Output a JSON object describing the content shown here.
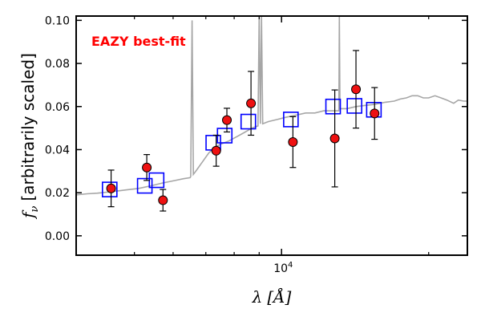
{
  "chart_data": {
    "type": "scatter",
    "annotation": "EAZY best-fit",
    "annotation_color": "#ff0000",
    "ylabel_parts": [
      "[arbitrarily scaled]"
    ],
    "ylabel_symbol": "f",
    "ylabel_subscript": "ν",
    "xlabel_symbol": "λ",
    "xlabel_unit": "[Å]",
    "x_scale": "log",
    "xlim": [
      3800,
      24000
    ],
    "ylim": [
      -0.009,
      0.102
    ],
    "y_ticks": [
      {
        "value": 0.0,
        "label": "0.00"
      },
      {
        "value": 0.02,
        "label": "0.02"
      },
      {
        "value": 0.04,
        "label": "0.04"
      },
      {
        "value": 0.06,
        "label": "0.06"
      },
      {
        "value": 0.08,
        "label": "0.08"
      },
      {
        "value": 0.1,
        "label": "0.10"
      }
    ],
    "x_major_ticks": [
      {
        "value": 10000,
        "label_base": "10",
        "label_exp": "4"
      }
    ],
    "x_minor_ticks": [
      5000,
      6000,
      7000,
      8000,
      9000,
      20000
    ],
    "sed_color": "#a6a6a6",
    "sed_curve": [
      [
        3800,
        0.019
      ],
      [
        4000,
        0.0195
      ],
      [
        4200,
        0.0198
      ],
      [
        4500,
        0.0205
      ],
      [
        4800,
        0.0213
      ],
      [
        5100,
        0.022
      ],
      [
        5400,
        0.0232
      ],
      [
        5700,
        0.0245
      ],
      [
        6000,
        0.0255
      ],
      [
        6300,
        0.0265
      ],
      [
        6500,
        0.027
      ],
      [
        6520,
        0.0275
      ],
      [
        6560,
        0.1
      ],
      [
        6600,
        0.0285
      ],
      [
        6700,
        0.0305
      ],
      [
        6900,
        0.0345
      ],
      [
        7100,
        0.0385
      ],
      [
        7300,
        0.041
      ],
      [
        7500,
        0.0425
      ],
      [
        7800,
        0.044
      ],
      [
        8100,
        0.046
      ],
      [
        8400,
        0.048
      ],
      [
        8700,
        0.05
      ],
      [
        8950,
        0.051
      ],
      [
        9000,
        0.102
      ],
      [
        9050,
        0.052
      ],
      [
        9100,
        0.102
      ],
      [
        9150,
        0.052
      ],
      [
        9400,
        0.053
      ],
      [
        9800,
        0.054
      ],
      [
        10200,
        0.055
      ],
      [
        10700,
        0.056
      ],
      [
        11200,
        0.057
      ],
      [
        11700,
        0.057
      ],
      [
        12200,
        0.058
      ],
      [
        12800,
        0.058
      ],
      [
        13100,
        0.058
      ],
      [
        13130,
        0.102
      ],
      [
        13170,
        0.059
      ],
      [
        13600,
        0.059
      ],
      [
        14200,
        0.06
      ],
      [
        14800,
        0.0605
      ],
      [
        15500,
        0.061
      ],
      [
        16300,
        0.062
      ],
      [
        17000,
        0.0625
      ],
      [
        17500,
        0.0635
      ],
      [
        18000,
        0.064
      ],
      [
        18500,
        0.065
      ],
      [
        19000,
        0.065
      ],
      [
        19500,
        0.064
      ],
      [
        20000,
        0.064
      ],
      [
        20600,
        0.065
      ],
      [
        21200,
        0.064
      ],
      [
        21800,
        0.063
      ],
      [
        22500,
        0.0615
      ],
      [
        23000,
        0.063
      ],
      [
        23600,
        0.0625
      ],
      [
        24000,
        0.0625
      ]
    ],
    "model_marker_color": "#0000ff",
    "model_points": [
      {
        "x": 4450,
        "y": 0.0215
      },
      {
        "x": 5250,
        "y": 0.0232
      },
      {
        "x": 5550,
        "y": 0.0258
      },
      {
        "x": 7250,
        "y": 0.0432
      },
      {
        "x": 7650,
        "y": 0.0465
      },
      {
        "x": 8550,
        "y": 0.053
      },
      {
        "x": 10450,
        "y": 0.054
      },
      {
        "x": 12750,
        "y": 0.06
      },
      {
        "x": 14100,
        "y": 0.0603
      },
      {
        "x": 15450,
        "y": 0.0585
      }
    ],
    "observed_marker_color": "#ee1111",
    "observed_points": [
      {
        "x": 4480,
        "y": 0.022,
        "err": 0.0085
      },
      {
        "x": 5300,
        "y": 0.0317,
        "err": 0.006
      },
      {
        "x": 5720,
        "y": 0.0165,
        "err": 0.005
      },
      {
        "x": 7350,
        "y": 0.0395,
        "err": 0.0072
      },
      {
        "x": 7730,
        "y": 0.0537,
        "err": 0.0055
      },
      {
        "x": 8660,
        "y": 0.0615,
        "err": 0.0148
      },
      {
        "x": 10550,
        "y": 0.0435,
        "err": 0.0118
      },
      {
        "x": 12850,
        "y": 0.0452,
        "err": 0.0225
      },
      {
        "x": 14200,
        "y": 0.068,
        "err": 0.018
      },
      {
        "x": 15500,
        "y": 0.0568,
        "err": 0.012
      }
    ]
  }
}
